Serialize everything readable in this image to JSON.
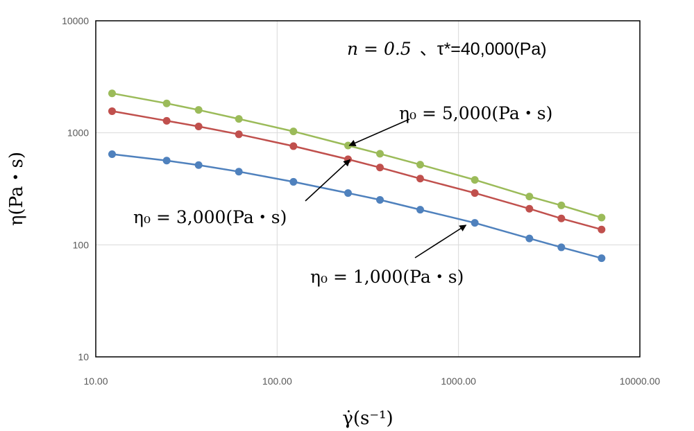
{
  "chart_data": {
    "type": "line",
    "title": "",
    "xlabel": "γ̇(s⁻¹)",
    "ylabel": "η(Pa・s)",
    "x_scale": "log",
    "y_scale": "log",
    "xlim": [
      10,
      10000
    ],
    "ylim": [
      10,
      10000
    ],
    "x_tick_values": [
      10,
      100,
      1000,
      10000
    ],
    "x_tick_labels": [
      "10.00",
      "100.00",
      "1000.00",
      "10000.00"
    ],
    "y_tick_values": [
      10,
      100,
      1000,
      10000
    ],
    "y_tick_labels": [
      "10",
      "100",
      "1000",
      "10000"
    ],
    "grid": true,
    "x": [
      12.3,
      24.6,
      36.9,
      61.5,
      123,
      246,
      369,
      615,
      1230,
      2460,
      3690,
      6150
    ],
    "series": [
      {
        "color": "#9BBB59",
        "values": [
          2250,
          1830,
          1600,
          1330,
          1030,
          770,
          650,
          520,
          380,
          270,
          225,
          175
        ]
      },
      {
        "color": "#C0504D",
        "values": [
          1560,
          1280,
          1140,
          970,
          760,
          580,
          490,
          390,
          290,
          210,
          172,
          137
        ]
      },
      {
        "color": "#4F81BD",
        "values": [
          645,
          565,
          515,
          450,
          365,
          290,
          252,
          206,
          157,
          114,
          95,
          76
        ]
      }
    ],
    "annotations": [
      {
        "prefix": "n = 0.5",
        "suffix": "、τ*=40,000(Pa)"
      },
      {
        "text": "η₀ = 5,000(Pa・s)",
        "arrow_to": {
          "x": 250,
          "y": 770
        }
      },
      {
        "text": "η₀ = 3,000(Pa・s)",
        "arrow_to": {
          "x": 252,
          "y": 575
        }
      },
      {
        "text": "η₀ = 1,000(Pa・s)",
        "arrow_to": {
          "x": 1100,
          "y": 150
        }
      }
    ]
  }
}
